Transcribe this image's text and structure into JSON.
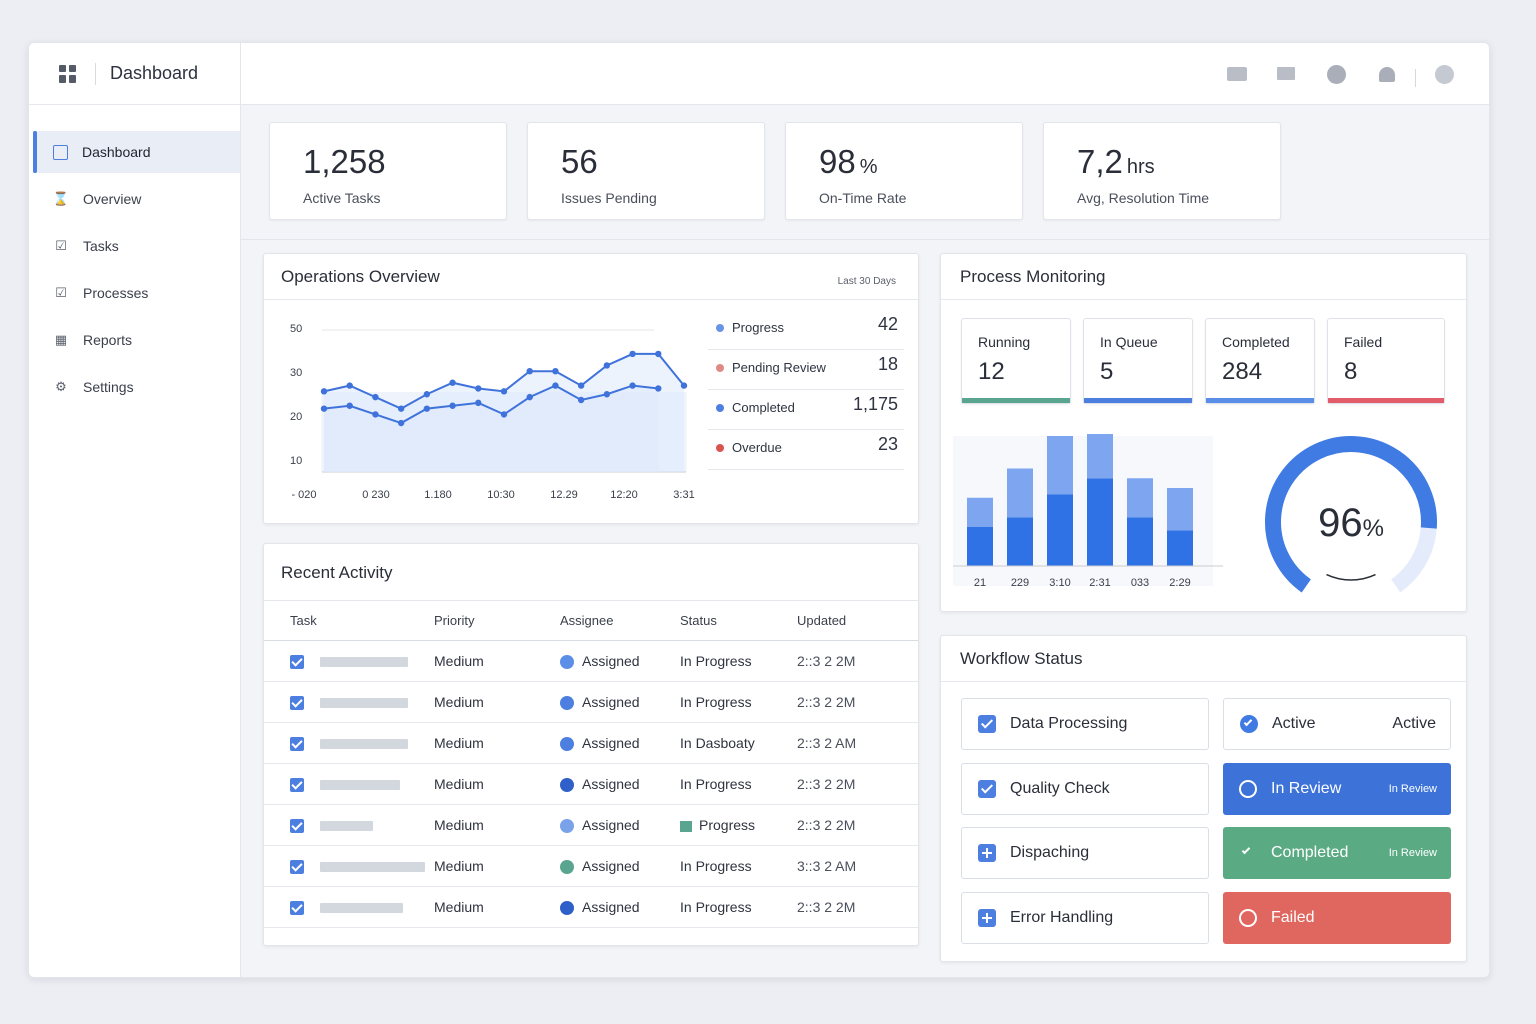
{
  "app": {
    "title": "Dashboard"
  },
  "sidebar": {
    "items": [
      {
        "label": "Dashboard",
        "icon": "square-icon",
        "active": true
      },
      {
        "label": "Overview",
        "icon": "hourglass-icon"
      },
      {
        "label": "Tasks",
        "icon": "checkbox-icon"
      },
      {
        "label": "Processes",
        "icon": "checkbox-icon"
      },
      {
        "label": "Reports",
        "icon": "chart-icon"
      },
      {
        "label": "Settings",
        "icon": "gear-icon"
      }
    ]
  },
  "topbar": {
    "icons": [
      "video-icon",
      "mail-icon",
      "circle-icon",
      "user-icon",
      "avatar-icon"
    ]
  },
  "kpis": [
    {
      "value": "1,258",
      "unit": "",
      "label": "Active Tasks"
    },
    {
      "value": "56",
      "unit": "",
      "label": "Issues Pending"
    },
    {
      "value": "98",
      "unit": "%",
      "label": "On-Time Rate"
    },
    {
      "value": "7,2",
      "unit": "hrs",
      "label": "Avg, Resolution Time"
    }
  ],
  "operations": {
    "title": "Operations Overview",
    "range": "Last 30 Days",
    "legend": [
      {
        "name": "Progress",
        "value": "42",
        "color": "#6a93e6"
      },
      {
        "name": "Pending Review",
        "value": "18",
        "color": "#e08a86"
      },
      {
        "name": "Completed",
        "value": "1,175",
        "color": "#4d7fe0"
      },
      {
        "name": "Overdue",
        "value": "23",
        "color": "#d9534f"
      }
    ]
  },
  "chart_data": [
    {
      "type": "line",
      "y_ticks": [
        "50",
        "30",
        "20",
        "10"
      ],
      "x_ticks": [
        "- 020",
        "0 230",
        "1.180",
        "10:30",
        "12.29",
        "12:20",
        "3:31"
      ],
      "ylim": [
        0,
        50
      ],
      "series": [
        {
          "values": [
            28,
            30,
            26,
            22,
            27,
            31,
            29,
            28,
            35,
            35,
            30,
            37,
            41,
            41,
            30
          ]
        },
        {
          "values": [
            22,
            23,
            20,
            17,
            22,
            23,
            24,
            20,
            26,
            30,
            25,
            27,
            30,
            29
          ]
        }
      ],
      "grid": true
    },
    {
      "type": "bar",
      "categories": [
        "21",
        "229",
        "3:10",
        "2:31",
        "033",
        "2:29"
      ],
      "series": [
        {
          "values": [
            12,
            15,
            22,
            27,
            15,
            11
          ]
        },
        {
          "values": [
            9,
            15,
            18,
            15,
            12,
            13
          ]
        }
      ],
      "ylim": [
        0,
        40
      ]
    }
  ],
  "process": {
    "title": "Process Monitoring",
    "tiles": [
      {
        "label": "Running",
        "value": "12",
        "color": "#5aa58f"
      },
      {
        "label": "In Queue",
        "value": "5",
        "color": "#4d7fe0"
      },
      {
        "label": "Completed",
        "value": "284",
        "color": "#5b8ee6"
      },
      {
        "label": "Failed",
        "value": "8",
        "color": "#e25c6a"
      }
    ],
    "gauge": {
      "value": "96",
      "unit": "%",
      "fraction": 0.96
    }
  },
  "activity": {
    "title": "Recent Activity",
    "columns": [
      "Task",
      "Priority",
      "Assignee",
      "Status",
      "Updated"
    ],
    "rows": [
      {
        "priority": "Medium",
        "assignee": "Assigned",
        "dot": "#5b8ee6",
        "status": "In Progress",
        "updated": "2::3 2 2M",
        "ph": 88
      },
      {
        "priority": "Medium",
        "assignee": "Assigned",
        "dot": "#4d7fe0",
        "status": "In Progress",
        "updated": "2::3 2 2M",
        "ph": 88
      },
      {
        "priority": "Medium",
        "assignee": "Assigned",
        "dot": "#4d7fe0",
        "status": "In Dasboaty",
        "updated": "2::3 2 AM",
        "ph": 88
      },
      {
        "priority": "Medium",
        "assignee": "Assigned",
        "dot": "#2f5fc9",
        "status": "In Progress",
        "updated": "2::3 2 2M",
        "ph": 80
      },
      {
        "priority": "Medium",
        "assignee": "Assigned",
        "dot": "#7aa2ea",
        "status": "Progress",
        "updated": "2::3 2 2M",
        "ph": 53,
        "square": true
      },
      {
        "priority": "Medium",
        "assignee": "Assigned",
        "dot": "#5aa58f",
        "status": "In Progress",
        "updated": "3::3 2 AM",
        "ph": 105
      },
      {
        "priority": "Medium",
        "assignee": "Assigned",
        "dot": "#2f5fc9",
        "status": "In Progress",
        "updated": "2::3 2 2M",
        "ph": 83
      }
    ]
  },
  "workflow": {
    "title": "Workflow Status",
    "steps": [
      {
        "label": "Data Processing",
        "icon": "tick"
      },
      {
        "label": "Quality Check",
        "icon": "tick"
      },
      {
        "label": "Dispaching",
        "icon": "plus"
      },
      {
        "label": "Error Handling",
        "icon": "plus"
      }
    ],
    "statuses": [
      {
        "label": "Active",
        "right": "Active",
        "bg": "#ffffff",
        "fg": "#2a2e38",
        "icon": "check-circle-icon"
      },
      {
        "label": "In Review",
        "right": "In Review",
        "bg": "#3d73d9",
        "fg": "#ffffff",
        "icon": "ring-icon"
      },
      {
        "label": "Completed",
        "right": "In Review",
        "bg": "#5aaa84",
        "fg": "#ffffff",
        "icon": "check-icon"
      },
      {
        "label": "Failed",
        "right": "",
        "bg": "#e0675f",
        "fg": "#ffffff",
        "icon": "ring-icon"
      }
    ]
  }
}
